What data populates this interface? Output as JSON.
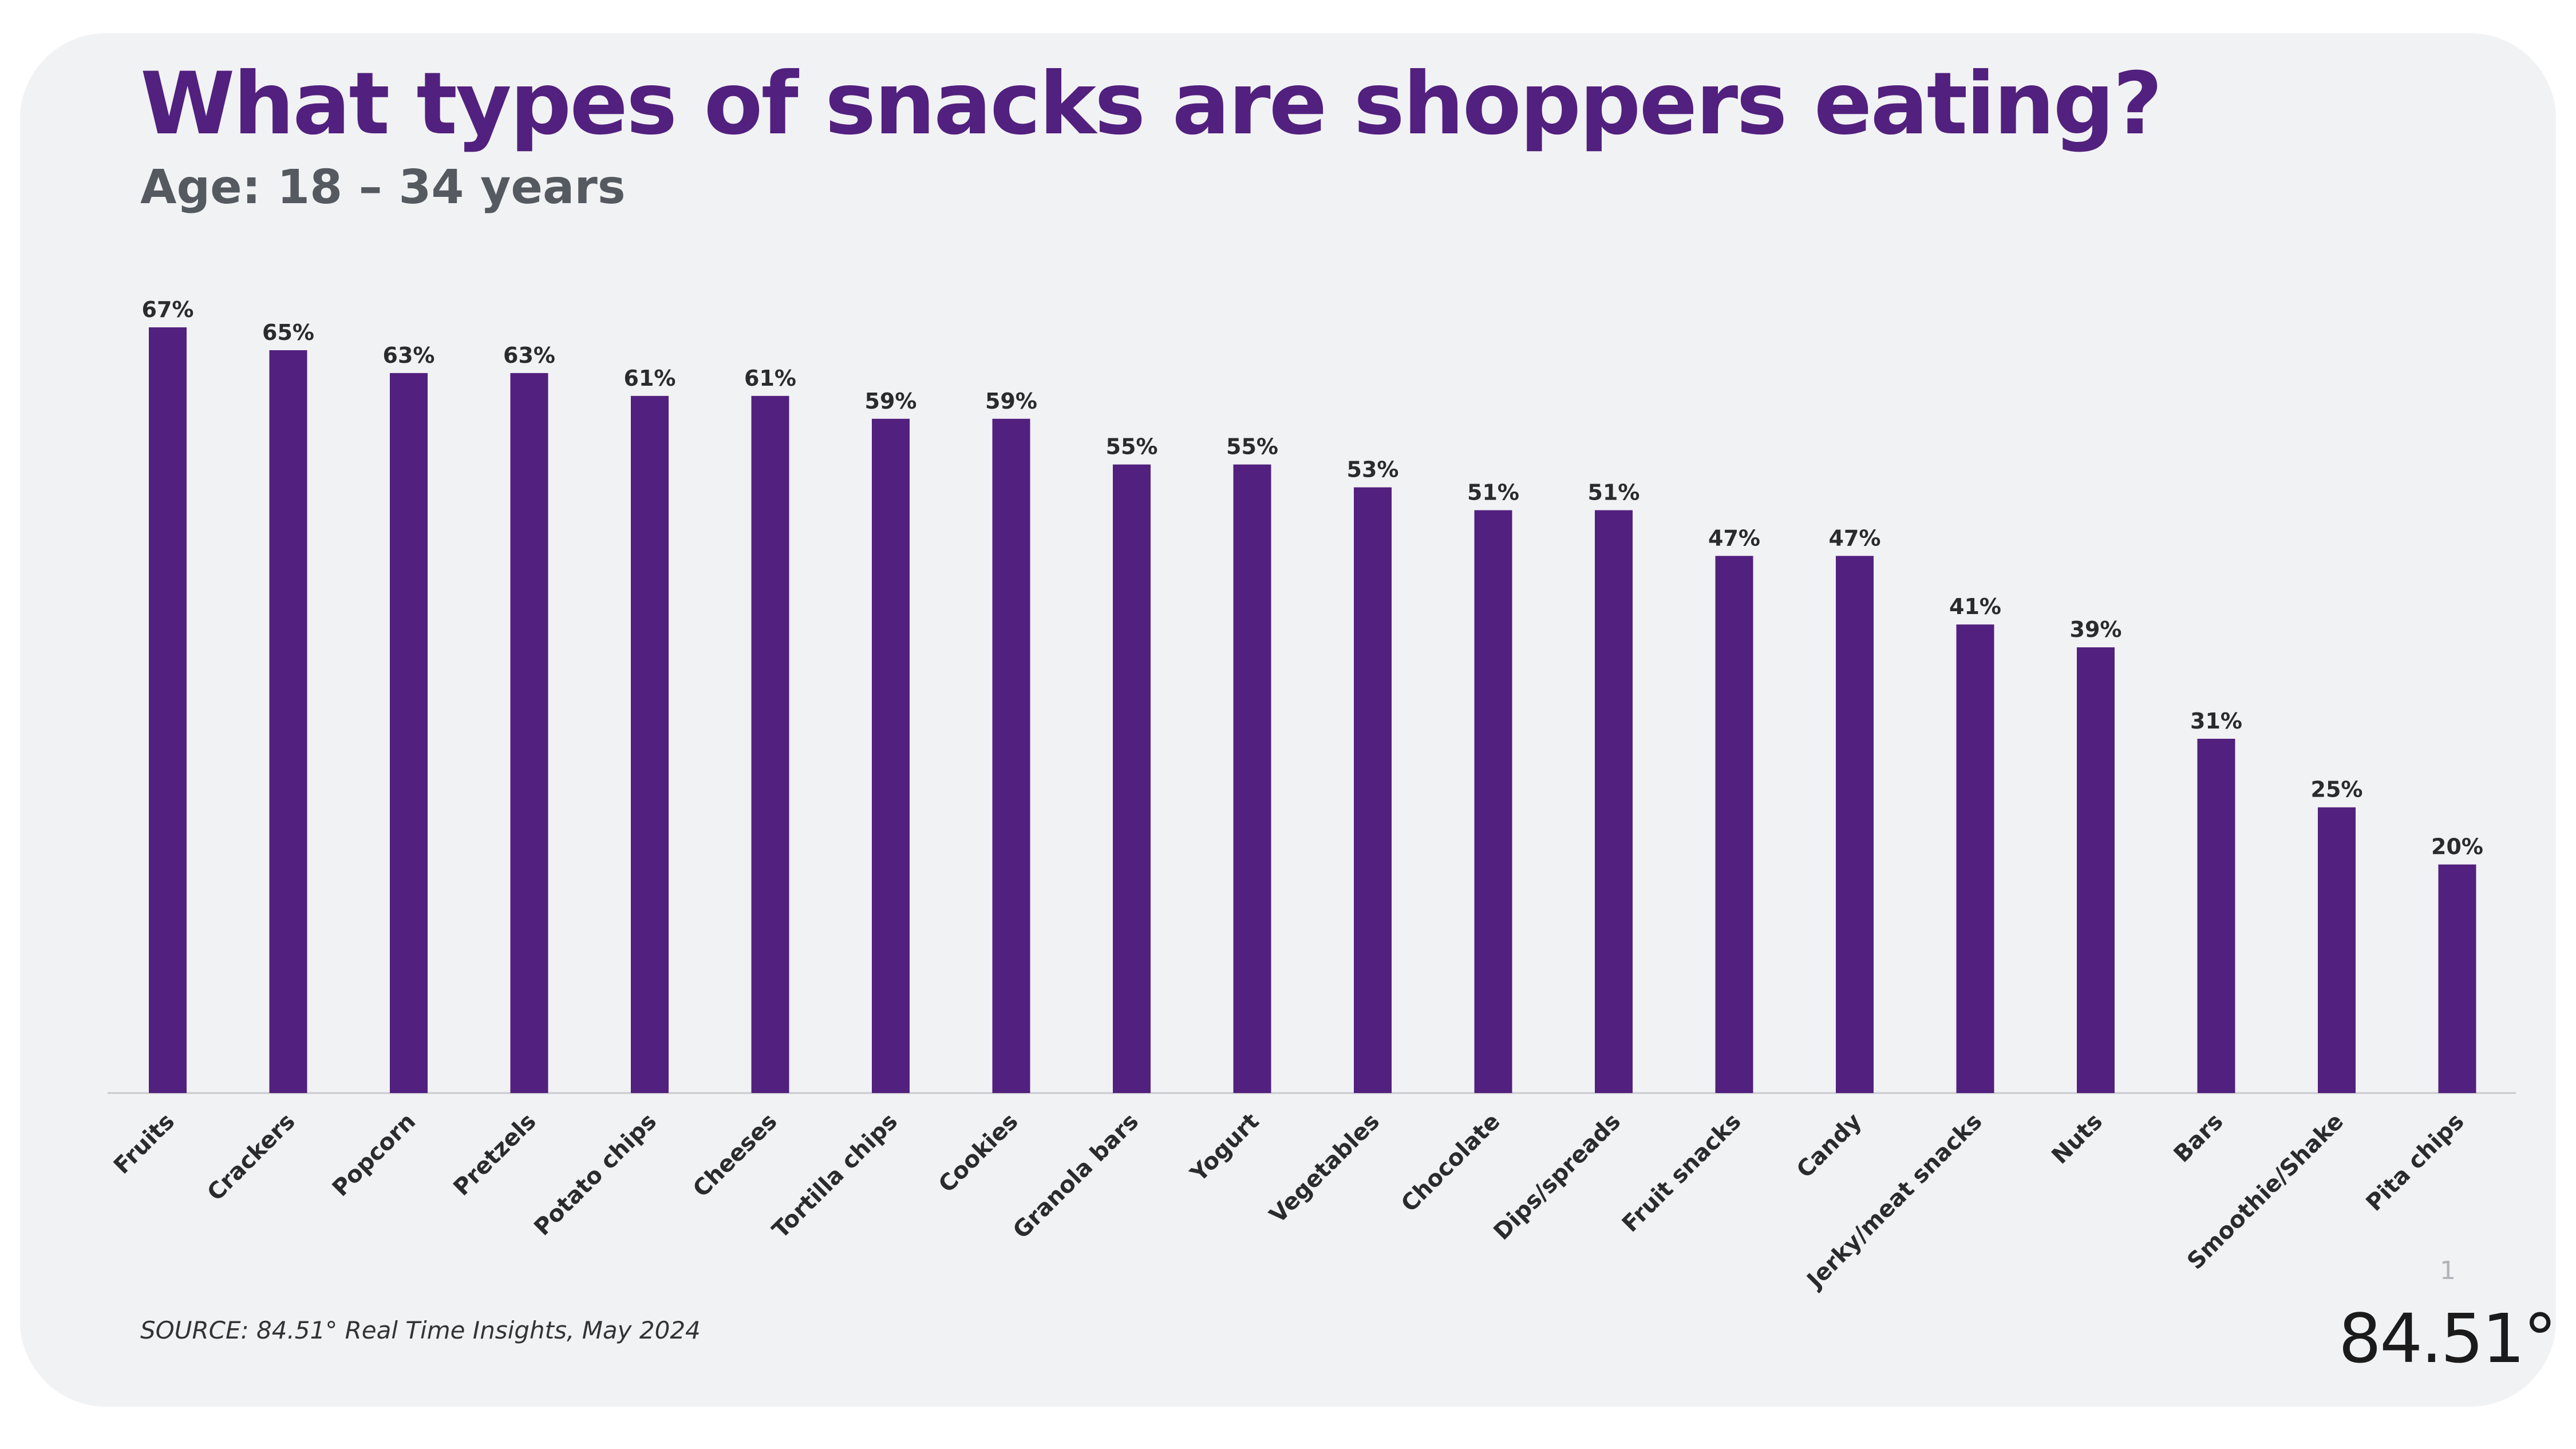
{
  "header": {
    "title": "What types of snacks are shoppers eating?",
    "subtitle": "Age: 18 – 34 years"
  },
  "footer": {
    "source": "SOURCE: 84.51° Real Time Insights, May 2024",
    "page_number": "1",
    "logo_text": "84.51°"
  },
  "colors": {
    "bar": "#52207e",
    "title": "#52207e",
    "background": "#f1f2f4"
  },
  "chart_data": {
    "type": "bar",
    "title": "What types of snacks are shoppers eating?",
    "subtitle": "Age: 18 – 34 years",
    "xlabel": "",
    "ylabel": "",
    "ylim": [
      0,
      67
    ],
    "grid": false,
    "legend": "none",
    "categories": [
      "Fruits",
      "Crackers",
      "Popcorn",
      "Pretzels",
      "Potato chips",
      "Cheeses",
      "Tortilla chips",
      "Cookies",
      "Granola bars",
      "Yogurt",
      "Vegetables",
      "Chocolate",
      "Dips/spreads",
      "Fruit snacks",
      "Candy",
      "Jerky/meat snacks",
      "Nuts",
      "Bars",
      "Smoothie/Shake",
      "Pita chips"
    ],
    "values": [
      67,
      65,
      63,
      63,
      61,
      61,
      59,
      59,
      55,
      55,
      53,
      51,
      51,
      47,
      47,
      41,
      39,
      31,
      25,
      20
    ],
    "value_labels": [
      "67%",
      "65%",
      "63%",
      "63%",
      "61%",
      "61%",
      "59%",
      "59%",
      "55%",
      "55%",
      "53%",
      "51%",
      "51%",
      "47%",
      "47%",
      "41%",
      "39%",
      "31%",
      "25%",
      "20%"
    ]
  }
}
